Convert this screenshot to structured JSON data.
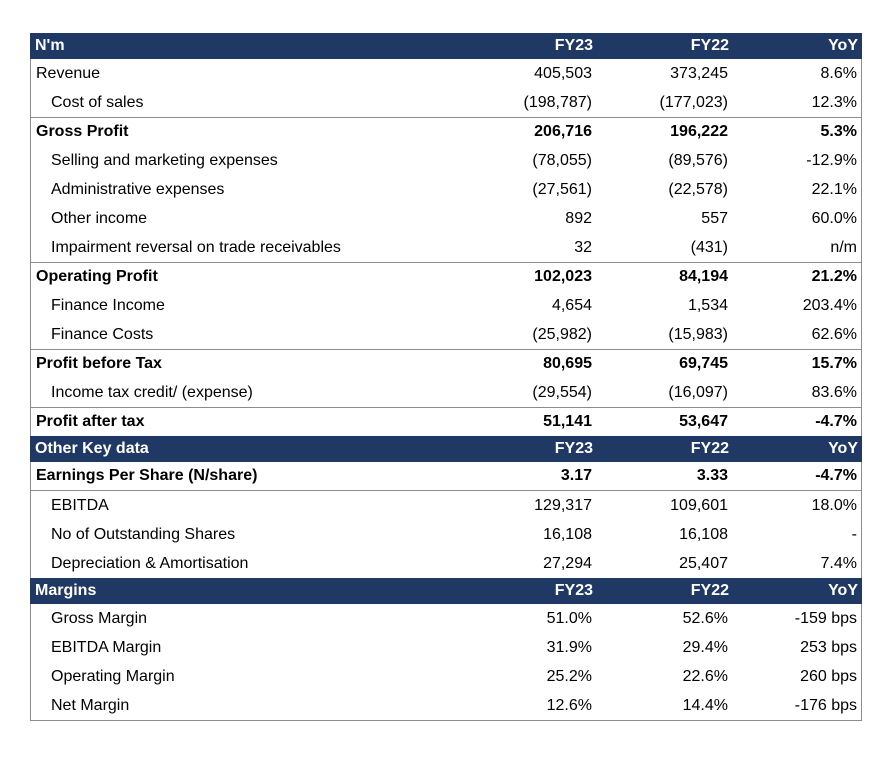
{
  "colors": {
    "header_bg": "#1F3864",
    "header_text": "#FFFFFF",
    "border": "#8c8c8c",
    "text": "#000000"
  },
  "table": {
    "sections": [
      {
        "header": {
          "label": "N'm",
          "fy23": "FY23",
          "fy22": "FY22",
          "yoy": "YoY"
        },
        "rows": [
          {
            "label": "Revenue",
            "fy23": "405,503",
            "fy22": "373,245",
            "yoy": "8.6%",
            "bold": false,
            "indent": false
          },
          {
            "label": "Cost of sales",
            "fy23": "(198,787)",
            "fy22": "(177,023)",
            "yoy": "12.3%",
            "bold": false,
            "indent": true
          },
          {
            "label": "Gross Profit",
            "fy23": "206,716",
            "fy22": "196,222",
            "yoy": "5.3%",
            "bold": true,
            "indent": false,
            "border_top": true
          },
          {
            "label": "Selling and marketing expenses",
            "fy23": "(78,055)",
            "fy22": "(89,576)",
            "yoy": "-12.9%",
            "bold": false,
            "indent": true
          },
          {
            "label": "Administrative expenses",
            "fy23": "(27,561)",
            "fy22": "(22,578)",
            "yoy": "22.1%",
            "bold": false,
            "indent": true
          },
          {
            "label": "Other income",
            "fy23": "892",
            "fy22": "557",
            "yoy": "60.0%",
            "bold": false,
            "indent": true
          },
          {
            "label": "Impairment reversal on trade receivables",
            "fy23": "32",
            "fy22": "(431)",
            "yoy": "n/m",
            "bold": false,
            "indent": true
          },
          {
            "label": "Operating Profit",
            "fy23": "102,023",
            "fy22": "84,194",
            "yoy": "21.2%",
            "bold": true,
            "indent": false,
            "border_top": true
          },
          {
            "label": "Finance Income",
            "fy23": "4,654",
            "fy22": "1,534",
            "yoy": "203.4%",
            "bold": false,
            "indent": true
          },
          {
            "label": "Finance Costs",
            "fy23": "(25,982)",
            "fy22": "(15,983)",
            "yoy": "62.6%",
            "bold": false,
            "indent": true
          },
          {
            "label": "Profit before Tax",
            "fy23": "80,695",
            "fy22": "69,745",
            "yoy": "15.7%",
            "bold": true,
            "indent": false,
            "border_top": true
          },
          {
            "label": "Income tax credit/ (expense)",
            "fy23": "(29,554)",
            "fy22": "(16,097)",
            "yoy": "83.6%",
            "bold": false,
            "indent": true
          },
          {
            "label": "Profit after tax",
            "fy23": "51,141",
            "fy22": "53,647",
            "yoy": "-4.7%",
            "bold": true,
            "indent": false,
            "border_top": true
          }
        ]
      },
      {
        "header": {
          "label": "Other Key data",
          "fy23": "FY23",
          "fy22": "FY22",
          "yoy": "YoY"
        },
        "rows": [
          {
            "label": "Earnings Per Share (N/share)",
            "fy23": "3.17",
            "fy22": "3.33",
            "yoy": "-4.7%",
            "bold": true,
            "indent": false,
            "border_bottom": true
          },
          {
            "label": "EBITDA",
            "fy23": "129,317",
            "fy22": "109,601",
            "yoy": "18.0%",
            "bold": false,
            "indent": true
          },
          {
            "label": "No of Outstanding Shares",
            "fy23": "16,108",
            "fy22": "16,108",
            "yoy": "-",
            "bold": false,
            "indent": true
          },
          {
            "label": "Depreciation & Amortisation",
            "fy23": "27,294",
            "fy22": "25,407",
            "yoy": "7.4%",
            "bold": false,
            "indent": true
          }
        ]
      },
      {
        "header": {
          "label": "Margins",
          "fy23": "FY23",
          "fy22": "FY22",
          "yoy": "YoY"
        },
        "rows": [
          {
            "label": "Gross Margin",
            "fy23": "51.0%",
            "fy22": "52.6%",
            "yoy": "-159 bps",
            "bold": false,
            "indent": true
          },
          {
            "label": "EBITDA Margin",
            "fy23": "31.9%",
            "fy22": "29.4%",
            "yoy": "253 bps",
            "bold": false,
            "indent": true
          },
          {
            "label": "Operating Margin",
            "fy23": "25.2%",
            "fy22": "22.6%",
            "yoy": "260 bps",
            "bold": false,
            "indent": true
          },
          {
            "label": "Net Margin",
            "fy23": "12.6%",
            "fy22": "14.4%",
            "yoy": "-176 bps",
            "bold": false,
            "indent": true
          }
        ]
      }
    ]
  }
}
